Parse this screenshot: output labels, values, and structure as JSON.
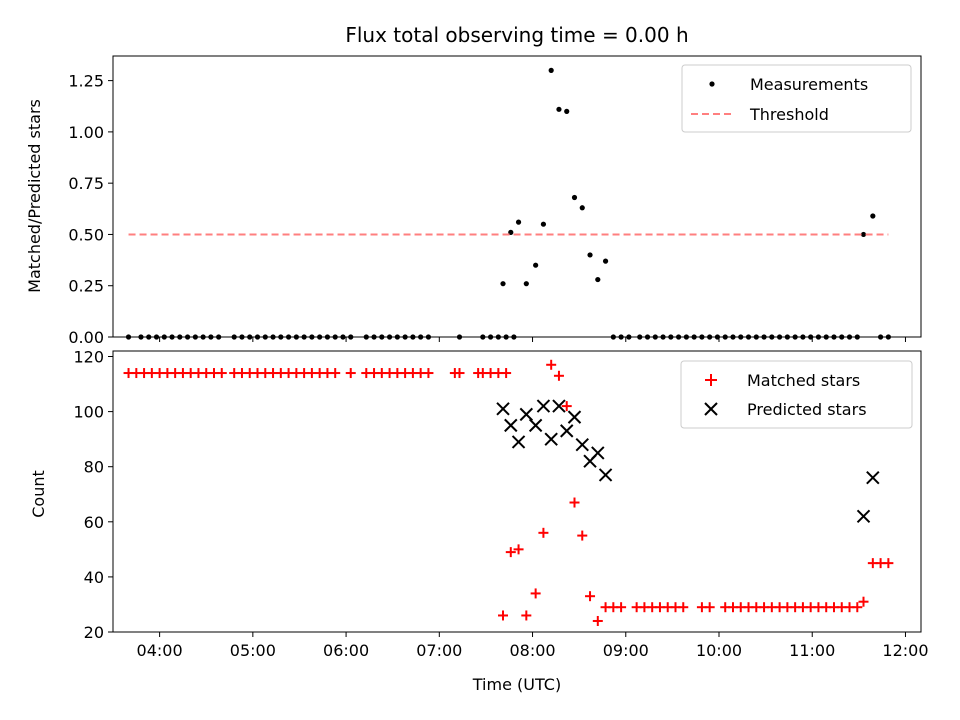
{
  "chart_data": [
    {
      "type": "scatter",
      "title": "Flux total observing time = 0.00 h",
      "xlabel": "",
      "ylabel": "Matched/Predicted stars",
      "xlim": [
        "03:30",
        "12:10"
      ],
      "ylim": [
        0,
        1.37
      ],
      "yticks": [
        0.0,
        0.25,
        0.5,
        0.75,
        1.0,
        1.25
      ],
      "ytick_labels": [
        "0.00",
        "0.25",
        "0.50",
        "0.75",
        "1.00",
        "1.25"
      ],
      "legend_position": "top-right",
      "series": [
        {
          "name": "Measurements",
          "style": "dot",
          "color": "#000000",
          "x": [
            "03:40",
            "03:48",
            "03:53",
            "03:58",
            "04:03",
            "04:08",
            "04:13",
            "04:18",
            "04:23",
            "04:28",
            "04:33",
            "04:38",
            "04:48",
            "04:53",
            "04:58",
            "05:03",
            "05:08",
            "05:13",
            "05:18",
            "05:23",
            "05:28",
            "05:33",
            "05:38",
            "05:43",
            "05:48",
            "05:53",
            "05:58",
            "06:03",
            "06:13",
            "06:18",
            "06:23",
            "06:28",
            "06:33",
            "06:38",
            "06:43",
            "06:48",
            "06:53",
            "07:13",
            "07:28",
            "07:33",
            "07:38",
            "07:43",
            "07:48",
            "07:41",
            "07:46",
            "07:51",
            "07:56",
            "08:02",
            "08:07",
            "08:12",
            "08:17",
            "08:22",
            "08:27",
            "08:32",
            "08:37",
            "08:42",
            "08:47",
            "08:52",
            "08:57",
            "09:02",
            "09:09",
            "09:14",
            "09:19",
            "09:24",
            "09:29",
            "09:34",
            "09:39",
            "09:44",
            "09:49",
            "09:54",
            "09:59",
            "10:04",
            "10:09",
            "10:14",
            "10:19",
            "10:24",
            "10:29",
            "10:34",
            "10:39",
            "10:44",
            "10:49",
            "10:54",
            "10:59",
            "11:04",
            "11:09",
            "11:14",
            "11:19",
            "11:24",
            "11:29",
            "11:33",
            "11:39",
            "11:44",
            "11:49"
          ],
          "y": [
            0,
            0,
            0,
            0,
            0,
            0,
            0,
            0,
            0,
            0,
            0,
            0,
            0,
            0,
            0,
            0,
            0,
            0,
            0,
            0,
            0,
            0,
            0,
            0,
            0,
            0,
            0,
            0,
            0,
            0,
            0,
            0,
            0,
            0,
            0,
            0,
            0,
            0,
            0,
            0,
            0,
            0,
            0,
            0.26,
            0.51,
            0.56,
            0.26,
            0.35,
            0.55,
            1.3,
            1.11,
            1.1,
            0.68,
            0.63,
            0.4,
            0.28,
            0.37,
            0,
            0,
            0,
            0,
            0,
            0,
            0,
            0,
            0,
            0,
            0,
            0,
            0,
            0,
            0,
            0,
            0,
            0,
            0,
            0,
            0,
            0,
            0,
            0,
            0,
            0,
            0,
            0,
            0,
            0,
            0,
            0,
            0.5,
            0.59,
            0,
            0
          ]
        },
        {
          "name": "Threshold",
          "style": "dashed-line",
          "color": "#ff7f7f",
          "x": [
            "03:40",
            "11:49"
          ],
          "y": [
            0.5,
            0.5
          ]
        }
      ]
    },
    {
      "type": "scatter",
      "title": "",
      "xlabel": "Time (UTC)",
      "ylabel": "Count",
      "xlim": [
        "03:30",
        "12:10"
      ],
      "ylim": [
        20,
        122
      ],
      "yticks": [
        20,
        40,
        60,
        80,
        100,
        120
      ],
      "ytick_labels": [
        "20",
        "40",
        "60",
        "80",
        "100",
        "120"
      ],
      "xticks": [
        "04:00",
        "05:00",
        "06:00",
        "07:00",
        "08:00",
        "09:00",
        "10:00",
        "11:00",
        "12:00"
      ],
      "legend_position": "top-right",
      "series": [
        {
          "name": "Matched stars",
          "style": "plus",
          "color": "#ff0000",
          "x": [
            "03:40",
            "03:45",
            "03:50",
            "03:55",
            "04:00",
            "04:05",
            "04:10",
            "04:15",
            "04:20",
            "04:25",
            "04:30",
            "04:35",
            "04:40",
            "04:48",
            "04:53",
            "04:58",
            "05:03",
            "05:08",
            "05:13",
            "05:18",
            "05:23",
            "05:28",
            "05:33",
            "05:38",
            "05:43",
            "05:48",
            "05:53",
            "06:03",
            "06:13",
            "06:18",
            "06:23",
            "06:28",
            "06:33",
            "06:38",
            "06:43",
            "06:48",
            "06:53",
            "07:10",
            "07:13",
            "07:25",
            "07:28",
            "07:33",
            "07:38",
            "07:43",
            "07:41",
            "07:46",
            "07:51",
            "07:56",
            "08:02",
            "08:07",
            "08:12",
            "08:17",
            "08:22",
            "08:27",
            "08:32",
            "08:37",
            "08:42",
            "08:47",
            "08:52",
            "08:57",
            "09:07",
            "09:12",
            "09:17",
            "09:22",
            "09:27",
            "09:32",
            "09:37",
            "09:49",
            "09:54",
            "10:04",
            "10:09",
            "10:14",
            "10:19",
            "10:24",
            "10:29",
            "10:34",
            "10:39",
            "10:44",
            "10:49",
            "10:54",
            "10:59",
            "11:04",
            "11:09",
            "11:14",
            "11:19",
            "11:24",
            "11:29",
            "11:33",
            "11:39",
            "11:44",
            "11:49"
          ],
          "y": [
            114,
            114,
            114,
            114,
            114,
            114,
            114,
            114,
            114,
            114,
            114,
            114,
            114,
            114,
            114,
            114,
            114,
            114,
            114,
            114,
            114,
            114,
            114,
            114,
            114,
            114,
            114,
            114,
            114,
            114,
            114,
            114,
            114,
            114,
            114,
            114,
            114,
            114,
            114,
            114,
            114,
            114,
            114,
            114,
            26,
            49,
            50,
            26,
            34,
            56,
            117,
            113,
            102,
            67,
            55,
            33,
            24,
            29,
            29,
            29,
            29,
            29,
            29,
            29,
            29,
            29,
            29,
            29,
            29,
            29,
            29,
            29,
            29,
            29,
            29,
            29,
            29,
            29,
            29,
            29,
            29,
            29,
            29,
            29,
            29,
            29,
            29,
            31,
            45,
            45,
            45
          ]
        },
        {
          "name": "Predicted stars",
          "style": "x",
          "color": "#000000",
          "x": [
            "07:41",
            "07:46",
            "07:51",
            "07:56",
            "08:02",
            "08:07",
            "08:12",
            "08:17",
            "08:22",
            "08:27",
            "08:32",
            "08:37",
            "08:42",
            "08:47",
            "11:33",
            "11:39"
          ],
          "y": [
            101,
            95,
            89,
            99,
            95,
            102,
            90,
            102,
            93,
            98,
            88,
            82,
            85,
            77,
            62,
            76
          ]
        }
      ]
    }
  ]
}
